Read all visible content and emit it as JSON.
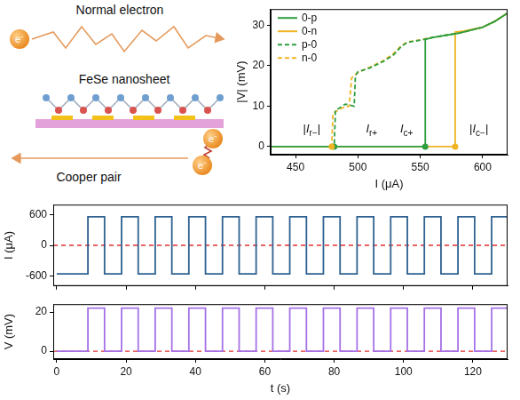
{
  "schematic": {
    "top_label": "Normal electron",
    "middle_label": "FeSe nanosheet",
    "bottom_label": "Cooper pair",
    "particle_label": "e⁻"
  },
  "chart_data": [
    {
      "type": "line",
      "x_label": "I (μA)",
      "y_label": "|V| (mV)",
      "xlim": [
        430,
        620
      ],
      "xticks": [
        450,
        500,
        550,
        600
      ],
      "ylim": [
        -2,
        34
      ],
      "yticks": [
        0,
        10,
        20,
        30
      ],
      "grid": false,
      "legend": "top-left",
      "series": [
        {
          "name": "0-p",
          "color": "#2e9e3e",
          "line_style": "solid",
          "x": [
            430,
            554,
            554,
            560,
            580,
            600,
            610,
            620
          ],
          "values": [
            0,
            0,
            26.5,
            27,
            28,
            29.5,
            31,
            33
          ]
        },
        {
          "name": "0-n",
          "color": "#f0b323",
          "line_style": "solid",
          "x": [
            430,
            578,
            578,
            585,
            600,
            610,
            620
          ],
          "values": [
            0,
            0,
            28.3,
            28.6,
            29.5,
            31,
            33
          ]
        },
        {
          "name": "p-0",
          "color": "#2e9e3e",
          "line_style": "dashed",
          "x": [
            620,
            610,
            600,
            580,
            560,
            550,
            540,
            535,
            528,
            520,
            510,
            500,
            498,
            497,
            490,
            485,
            482,
            481,
            430
          ],
          "values": [
            33,
            31,
            29.5,
            28,
            27,
            26.3,
            25.8,
            24.8,
            22.5,
            21,
            19.5,
            18.5,
            17.5,
            10,
            10.5,
            9.5,
            9,
            0,
            0
          ]
        },
        {
          "name": "n-0",
          "color": "#f0b323",
          "line_style": "dashed",
          "x": [
            620,
            610,
            600,
            580,
            560,
            550,
            540,
            535,
            528,
            520,
            510,
            500,
            495,
            493,
            487,
            483,
            480,
            479,
            430
          ],
          "values": [
            33,
            31,
            29.5,
            28,
            27,
            26.4,
            25.9,
            25,
            22.8,
            21.2,
            19.7,
            18.3,
            17,
            10,
            9.5,
            8.8,
            8.2,
            0,
            0
          ]
        }
      ],
      "annotations": [
        {
          "text": "|Ir−|",
          "x": 463,
          "y": 3.5
        },
        {
          "text": "Ir+",
          "x": 511,
          "y": 3.5
        },
        {
          "text": "Ic+",
          "x": 539,
          "y": 3.5
        },
        {
          "text": "|Ic−|",
          "x": 597,
          "y": 3.5
        }
      ],
      "markers": [
        {
          "x": 481,
          "y": 0,
          "color": "#2e9e3e"
        },
        {
          "x": 479,
          "y": 0,
          "color": "#f0b323"
        },
        {
          "x": 554,
          "y": 0,
          "color": "#2e9e3e"
        },
        {
          "x": 578,
          "y": 0,
          "color": "#f0b323"
        }
      ]
    },
    {
      "type": "line",
      "y_label": "I (μA)",
      "xlim": [
        -1,
        130
      ],
      "xticks": [
        0,
        20,
        40,
        60,
        80,
        100,
        120
      ],
      "ylim": [
        -800,
        800
      ],
      "yticks": [
        -600,
        0,
        600
      ],
      "grid": false,
      "tick_labels": "y",
      "reference_line": {
        "y": 0,
        "color": "#e03030",
        "line_style": "dashed"
      },
      "series": [
        {
          "color": "#2f6190",
          "line_style": "solid",
          "x": [
            0,
            9,
            9,
            13.8,
            13.8,
            18.7,
            18.7,
            23.5,
            23.5,
            28.4,
            28.4,
            33.2,
            33.2,
            38.1,
            38.1,
            42.9,
            42.9,
            47.8,
            47.8,
            52.6,
            52.6,
            57.5,
            57.5,
            62.3,
            62.3,
            67.2,
            67.2,
            72,
            72,
            76.9,
            76.9,
            81.7,
            81.7,
            86.6,
            86.6,
            91.4,
            91.4,
            96.3,
            96.3,
            101.1,
            101.1,
            106,
            106,
            110.8,
            110.8,
            115.7,
            115.7,
            120.5,
            120.5,
            125.4,
            125.4,
            130
          ],
          "values": [
            -560,
            -560,
            560,
            560,
            -560,
            -560,
            560,
            560,
            -560,
            -560,
            560,
            560,
            -560,
            -560,
            560,
            560,
            -560,
            -560,
            560,
            560,
            -560,
            -560,
            560,
            560,
            -560,
            -560,
            560,
            560,
            -560,
            -560,
            560,
            560,
            -560,
            -560,
            560,
            560,
            -560,
            -560,
            560,
            560,
            -560,
            -560,
            560,
            560,
            -560,
            -560,
            560,
            560,
            -560,
            -560,
            560,
            560
          ]
        }
      ]
    },
    {
      "type": "line",
      "x_label": "t (s)",
      "y_label": "V (mV)",
      "xlim": [
        -1,
        130
      ],
      "xticks": [
        0,
        20,
        40,
        60,
        80,
        100,
        120
      ],
      "ylim": [
        -4,
        24
      ],
      "yticks": [
        0,
        20
      ],
      "grid": false,
      "reference_line": {
        "y": 0,
        "color": "#e03030",
        "line_style": "dashed"
      },
      "series": [
        {
          "color": "#a571e6",
          "line_style": "solid",
          "x": [
            0,
            9,
            9,
            13.8,
            13.8,
            18.7,
            18.7,
            23.5,
            23.5,
            28.4,
            28.4,
            33.2,
            33.2,
            38.1,
            38.1,
            42.9,
            42.9,
            47.8,
            47.8,
            52.6,
            52.6,
            57.5,
            57.5,
            62.3,
            62.3,
            67.2,
            67.2,
            72,
            72,
            76.9,
            76.9,
            81.7,
            81.7,
            86.6,
            86.6,
            91.4,
            91.4,
            96.3,
            96.3,
            101.1,
            101.1,
            106,
            106,
            110.8,
            110.8,
            115.7,
            115.7,
            120.5,
            120.5,
            125.4,
            125.4,
            130
          ],
          "values": [
            0,
            0,
            22,
            22,
            0,
            0,
            22,
            22,
            0,
            0,
            22,
            22,
            0,
            0,
            22,
            22,
            0,
            0,
            22,
            22,
            0,
            0,
            22,
            22,
            0,
            0,
            22,
            22,
            0,
            0,
            22,
            22,
            0,
            0,
            22,
            22,
            0,
            0,
            22,
            22,
            0,
            0,
            22,
            22,
            0,
            0,
            22,
            22,
            0,
            0,
            22,
            22
          ]
        }
      ]
    }
  ]
}
